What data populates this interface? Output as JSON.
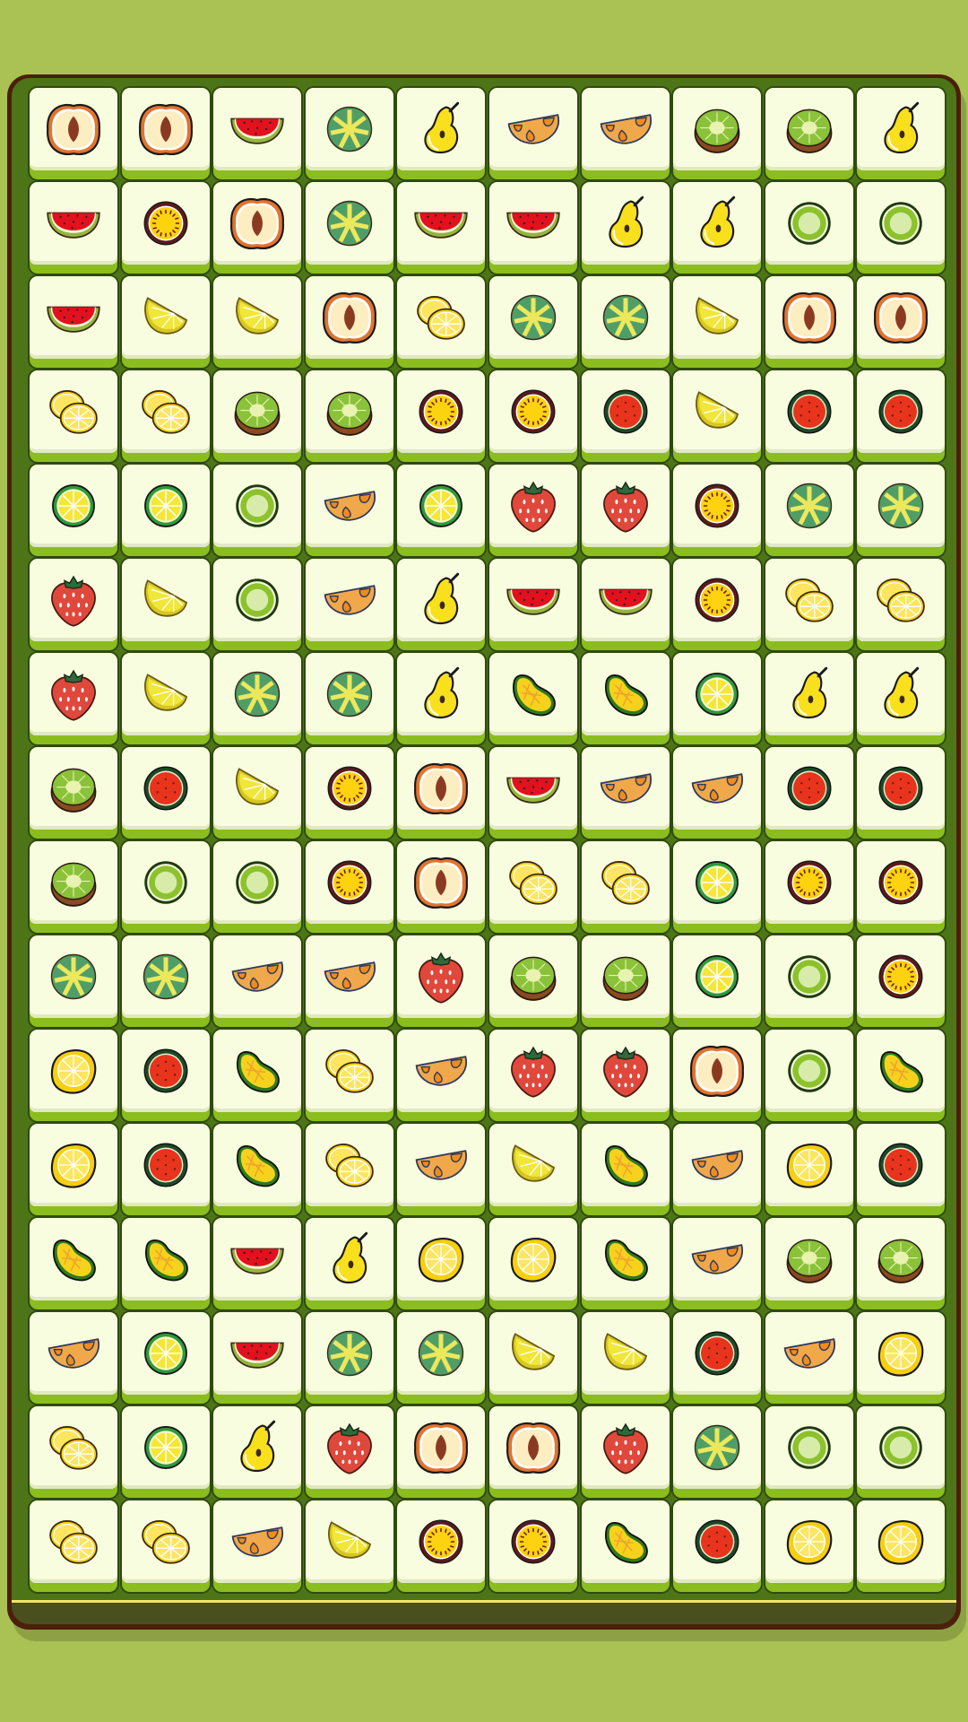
{
  "game": {
    "columns": 10,
    "rows": 16,
    "colors": {
      "background": "#a9c253",
      "board_frame": "#4b1f0a",
      "board_felt": "#4d7517",
      "tile_face": "#f8fde0",
      "tile_edge": "#8bbd1e",
      "board_trim": "#f2e46a"
    },
    "grid": [
      [
        "peach",
        "peach",
        "watermelon-slice",
        "green-wheel",
        "pear",
        "orange-wedge",
        "orange-wedge",
        "kiwi-half",
        "kiwi-half",
        "pear"
      ],
      [
        "watermelon-slice",
        "passion-fruit",
        "peach",
        "green-wheel",
        "watermelon-slice",
        "watermelon-slice",
        "pear",
        "pear",
        "kiwi-ring",
        "kiwi-ring"
      ],
      [
        "watermelon-slice",
        "lemon-wedge",
        "lemon-wedge",
        "peach",
        "lemon-slices",
        "green-wheel",
        "green-wheel",
        "lemon-wedge",
        "peach",
        "peach"
      ],
      [
        "lemon-slices",
        "lemon-slices",
        "kiwi-half",
        "kiwi-half",
        "passion-fruit",
        "passion-fruit",
        "watermelon-round",
        "lemon-wedge",
        "watermelon-round",
        "watermelon-round"
      ],
      [
        "lime-wheel",
        "lime-wheel",
        "kiwi-ring",
        "orange-wedge",
        "lime-wheel",
        "strawberry",
        "strawberry",
        "passion-fruit",
        "green-wheel",
        "green-wheel"
      ],
      [
        "strawberry",
        "lemon-wedge",
        "kiwi-ring",
        "orange-wedge",
        "pear",
        "watermelon-slice",
        "watermelon-slice",
        "passion-fruit",
        "lemon-slices",
        "lemon-slices"
      ],
      [
        "strawberry",
        "lemon-wedge",
        "green-wheel",
        "green-wheel",
        "pear",
        "mango",
        "mango",
        "lime-wheel",
        "pear",
        "pear"
      ],
      [
        "kiwi-half",
        "watermelon-round",
        "lemon-wedge",
        "passion-fruit",
        "peach",
        "watermelon-slice",
        "orange-wedge",
        "orange-wedge",
        "watermelon-round",
        "watermelon-round"
      ],
      [
        "kiwi-half",
        "kiwi-ring",
        "kiwi-ring",
        "passion-fruit",
        "peach",
        "lemon-slices",
        "lemon-slices",
        "lime-wheel",
        "passion-fruit",
        "passion-fruit"
      ],
      [
        "green-wheel",
        "green-wheel",
        "orange-wedge",
        "orange-wedge",
        "strawberry",
        "kiwi-half",
        "kiwi-half",
        "lime-wheel",
        "kiwi-ring",
        "passion-fruit"
      ],
      [
        "lemon",
        "watermelon-round",
        "mango",
        "lemon-slices",
        "orange-wedge",
        "strawberry",
        "strawberry",
        "peach",
        "kiwi-ring",
        "mango"
      ],
      [
        "lemon",
        "watermelon-round",
        "mango",
        "lemon-slices",
        "orange-wedge",
        "lemon-wedge",
        "mango",
        "orange-wedge",
        "lemon",
        "watermelon-round"
      ],
      [
        "mango",
        "mango",
        "watermelon-slice",
        "pear",
        "lemon",
        "lemon",
        "mango",
        "orange-wedge",
        "kiwi-half",
        "kiwi-half"
      ],
      [
        "orange-wedge",
        "lime-wheel",
        "watermelon-slice",
        "green-wheel",
        "green-wheel",
        "lemon-wedge",
        "lemon-wedge",
        "watermelon-round",
        "orange-wedge",
        "lemon"
      ],
      [
        "lemon-slices",
        "lime-wheel",
        "pear",
        "strawberry",
        "peach",
        "peach",
        "strawberry",
        "green-wheel",
        "kiwi-ring",
        "kiwi-ring"
      ],
      [
        "lemon-slices",
        "lemon-slices",
        "orange-wedge",
        "lemon-wedge",
        "passion-fruit",
        "passion-fruit",
        "mango",
        "watermelon-round",
        "lemon",
        "lemon"
      ]
    ]
  }
}
